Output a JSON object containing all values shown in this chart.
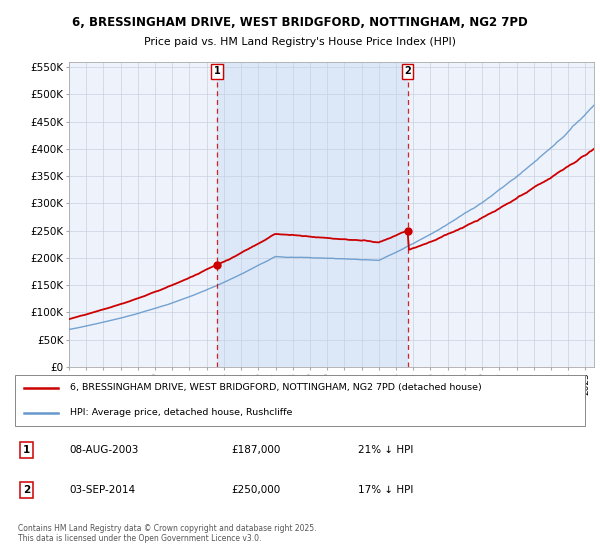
{
  "title1": "6, BRESSINGHAM DRIVE, WEST BRIDGFORD, NOTTINGHAM, NG2 7PD",
  "title2": "Price paid vs. HM Land Registry's House Price Index (HPI)",
  "legend_red": "6, BRESSINGHAM DRIVE, WEST BRIDGFORD, NOTTINGHAM, NG2 7PD (detached house)",
  "legend_blue": "HPI: Average price, detached house, Rushcliffe",
  "annotation1_date": "08-AUG-2003",
  "annotation1_price": "£187,000",
  "annotation1_hpi": "21% ↓ HPI",
  "annotation2_date": "03-SEP-2014",
  "annotation2_price": "£250,000",
  "annotation2_hpi": "17% ↓ HPI",
  "vline1_x": 2003.6,
  "vline2_x": 2014.67,
  "point1_x": 2003.6,
  "point1_y": 187000,
  "point2_x": 2014.67,
  "point2_y": 250000,
  "xmin": 1995.0,
  "xmax": 2025.5,
  "ymin": 0,
  "ymax": 560000,
  "yticks": [
    0,
    50000,
    100000,
    150000,
    200000,
    250000,
    300000,
    350000,
    400000,
    450000,
    500000,
    550000
  ],
  "ylabels": [
    "£0",
    "£50K",
    "£100K",
    "£150K",
    "£200K",
    "£250K",
    "£300K",
    "£350K",
    "£400K",
    "£450K",
    "£500K",
    "£550K"
  ],
  "background_color": "#ffffff",
  "plot_bg_color": "#eef2fb",
  "highlight_bg_color": "#dce8f8",
  "grid_color": "#c8d0e0",
  "red_color": "#cc0000",
  "blue_color": "#6699cc",
  "footer_text": "Contains HM Land Registry data © Crown copyright and database right 2025.\nThis data is licensed under the Open Government Licence v3.0."
}
